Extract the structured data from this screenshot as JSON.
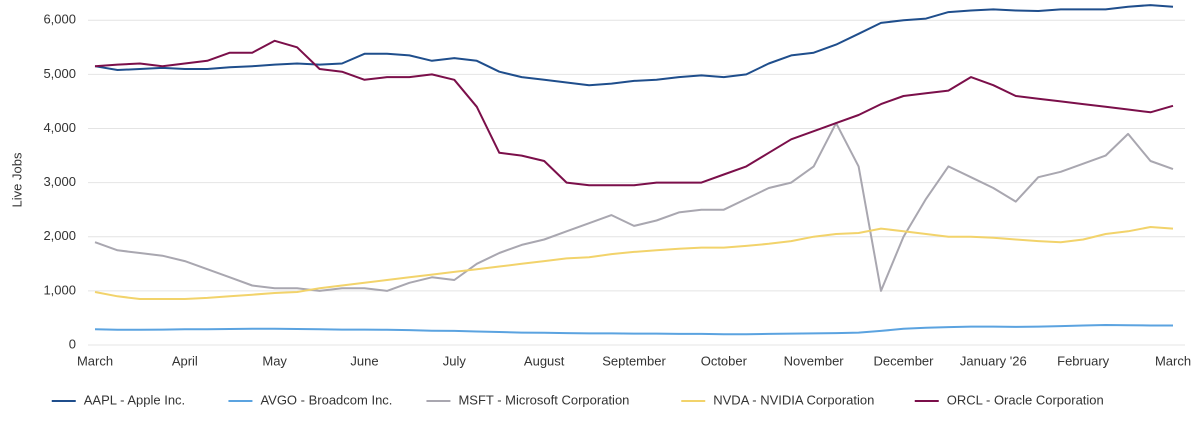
{
  "chart_data": {
    "type": "line",
    "y_label": "Live Jobs",
    "categories": [
      "March",
      null,
      null,
      null,
      "April",
      null,
      null,
      null,
      "May",
      null,
      null,
      null,
      "June",
      null,
      null,
      null,
      "July",
      null,
      null,
      null,
      "August",
      null,
      null,
      null,
      "September",
      null,
      null,
      null,
      "October",
      null,
      null,
      null,
      "November",
      null,
      null,
      null,
      "December",
      null,
      null,
      null,
      "January '26",
      null,
      null,
      null,
      "February",
      null,
      null,
      null,
      "March"
    ],
    "ylim": [
      0,
      6300
    ],
    "yticks": [
      0,
      {
        "value": 1000,
        "label": "1,000"
      },
      {
        "value": 2000,
        "label": "2,000"
      },
      {
        "value": 3000,
        "label": "3,000"
      },
      {
        "value": 4000,
        "label": "4,000"
      },
      {
        "value": 5000,
        "label": "5,000"
      },
      {
        "value": 6000,
        "label": "6,000"
      }
    ],
    "grid": true,
    "legend": "bottom",
    "series": [
      {
        "name": "AAPL - Apple Inc.",
        "color": "#1f4e8c",
        "values": [
          5150,
          5080,
          5100,
          5120,
          5100,
          5100,
          5130,
          5150,
          5180,
          5200,
          5180,
          5200,
          5380,
          5380,
          5350,
          5250,
          5300,
          5250,
          5050,
          4950,
          4900,
          4850,
          4800,
          4830,
          4880,
          4900,
          4950,
          4980,
          4950,
          5000,
          5200,
          5350,
          5400,
          5550,
          5750,
          5950,
          6000,
          6030,
          6150,
          6180,
          6200,
          6180,
          6170,
          6200,
          6200,
          6200,
          6250,
          6280,
          6250
        ]
      },
      {
        "name": "AVGO - Broadcom Inc.",
        "color": "#5ba3e0",
        "values": [
          290,
          280,
          280,
          285,
          290,
          290,
          295,
          300,
          300,
          295,
          290,
          285,
          285,
          280,
          275,
          265,
          260,
          250,
          240,
          230,
          225,
          220,
          215,
          215,
          210,
          210,
          205,
          205,
          200,
          200,
          205,
          210,
          215,
          220,
          230,
          260,
          300,
          320,
          330,
          340,
          340,
          335,
          340,
          350,
          360,
          370,
          365,
          360,
          360
        ]
      },
      {
        "name": "MSFT - Microsoft Corporation",
        "color": "#a9a7b0",
        "values": [
          1900,
          1750,
          1700,
          1650,
          1550,
          1400,
          1250,
          1100,
          1050,
          1050,
          1000,
          1050,
          1050,
          1000,
          1150,
          1250,
          1200,
          1500,
          1700,
          1850,
          1950,
          2100,
          2250,
          2400,
          2200,
          2300,
          2450,
          2500,
          2500,
          2700,
          2900,
          3000,
          3300,
          4100,
          3300,
          1000,
          2000,
          2700,
          3300,
          3100,
          2900,
          2650,
          3100,
          3200,
          3350,
          3500,
          3900,
          3400,
          3250
        ]
      },
      {
        "name": "NVDA - NVIDIA Corporation",
        "color": "#f2d36b",
        "values": [
          980,
          900,
          850,
          850,
          850,
          870,
          900,
          930,
          960,
          980,
          1050,
          1100,
          1150,
          1200,
          1250,
          1300,
          1350,
          1400,
          1450,
          1500,
          1550,
          1600,
          1620,
          1680,
          1720,
          1750,
          1780,
          1800,
          1800,
          1830,
          1870,
          1920,
          2000,
          2050,
          2070,
          2150,
          2100,
          2050,
          2000,
          2000,
          1980,
          1950,
          1920,
          1900,
          1950,
          2050,
          2100,
          2180,
          2150
        ]
      },
      {
        "name": "ORCL - Oracle Corporation",
        "color": "#7b0f4a",
        "values": [
          5150,
          5180,
          5200,
          5150,
          5200,
          5250,
          5400,
          5400,
          5620,
          5500,
          5100,
          5050,
          4900,
          4950,
          4950,
          5000,
          4900,
          4400,
          3550,
          3500,
          3400,
          3000,
          2950,
          2950,
          2950,
          3000,
          3000,
          3000,
          3150,
          3300,
          3550,
          3800,
          3950,
          4100,
          4250,
          4450,
          4600,
          4650,
          4700,
          4950,
          4800,
          4600,
          4550,
          4500,
          4450,
          4400,
          4350,
          4300,
          4420
        ]
      }
    ]
  }
}
